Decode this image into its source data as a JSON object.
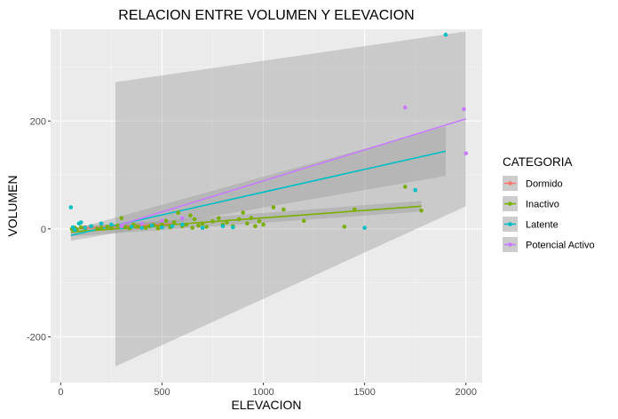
{
  "chart_data": {
    "type": "scatter",
    "title": "RELACION ENTRE VOLUMEN Y ELEVACION",
    "xlabel": "ELEVACION",
    "ylabel": "VOLUMEN",
    "xlim": [
      -50,
      2080
    ],
    "ylim": [
      -285,
      370
    ],
    "x_ticks": [
      0,
      500,
      1000,
      1500,
      2000
    ],
    "x_tick_labels": [
      "0",
      "500",
      "1000",
      "1500",
      "2000"
    ],
    "y_ticks": [
      -200,
      0,
      200
    ],
    "y_tick_labels": [
      "-200",
      "0",
      "200"
    ],
    "grid": true,
    "legend": {
      "title": "CATEGORIA",
      "position": "right"
    },
    "series": [
      {
        "name": "Dormido",
        "color": "#F8766D",
        "points": [
          [
            120,
            3
          ],
          [
            250,
            6
          ],
          [
            380,
            3
          ],
          [
            500,
            8
          ]
        ],
        "fit": [
          [
            100,
            1
          ],
          [
            550,
            9
          ]
        ],
        "band": [
          [
            100,
            -4,
            6
          ],
          [
            550,
            4,
            14
          ]
        ]
      },
      {
        "name": "Inactivo",
        "color": "#7CAE00",
        "points": [
          [
            55,
            0
          ],
          [
            70,
            2
          ],
          [
            80,
            -1
          ],
          [
            100,
            3
          ],
          [
            120,
            1
          ],
          [
            150,
            5
          ],
          [
            180,
            0
          ],
          [
            200,
            2
          ],
          [
            230,
            4
          ],
          [
            250,
            1
          ],
          [
            280,
            6
          ],
          [
            300,
            20
          ],
          [
            320,
            3
          ],
          [
            340,
            1
          ],
          [
            360,
            8
          ],
          [
            380,
            4
          ],
          [
            400,
            10
          ],
          [
            420,
            2
          ],
          [
            440,
            5
          ],
          [
            460,
            7
          ],
          [
            480,
            1
          ],
          [
            500,
            9
          ],
          [
            520,
            15
          ],
          [
            540,
            3
          ],
          [
            560,
            12
          ],
          [
            580,
            30
          ],
          [
            600,
            5
          ],
          [
            620,
            8
          ],
          [
            640,
            25
          ],
          [
            650,
            2
          ],
          [
            660,
            18
          ],
          [
            680,
            6
          ],
          [
            700,
            10
          ],
          [
            720,
            4
          ],
          [
            750,
            14
          ],
          [
            780,
            20
          ],
          [
            800,
            8
          ],
          [
            820,
            12
          ],
          [
            850,
            5
          ],
          [
            880,
            18
          ],
          [
            900,
            30
          ],
          [
            920,
            10
          ],
          [
            940,
            20
          ],
          [
            960,
            5
          ],
          [
            980,
            14
          ],
          [
            1000,
            8
          ],
          [
            1050,
            40
          ],
          [
            1100,
            36
          ],
          [
            1200,
            15
          ],
          [
            1400,
            4
          ],
          [
            1450,
            36
          ],
          [
            1700,
            78
          ],
          [
            1780,
            34
          ]
        ],
        "fit": [
          [
            50,
            -6
          ],
          [
            1780,
            42
          ]
        ],
        "band": [
          [
            50,
            -14,
            2
          ],
          [
            1780,
            32,
            52
          ]
        ]
      },
      {
        "name": "Latente",
        "color": "#00BFC4",
        "points": [
          [
            50,
            40
          ],
          [
            60,
            3
          ],
          [
            70,
            -2
          ],
          [
            90,
            10
          ],
          [
            100,
            12
          ],
          [
            120,
            2
          ],
          [
            150,
            5
          ],
          [
            200,
            10
          ],
          [
            250,
            8
          ],
          [
            300,
            3
          ],
          [
            350,
            4
          ],
          [
            400,
            2
          ],
          [
            450,
            6
          ],
          [
            500,
            3
          ],
          [
            550,
            5
          ],
          [
            600,
            8
          ],
          [
            700,
            2
          ],
          [
            800,
            5
          ],
          [
            850,
            3
          ],
          [
            1500,
            2
          ],
          [
            1750,
            72
          ],
          [
            1900,
            360
          ]
        ],
        "fit": [
          [
            50,
            -12
          ],
          [
            1900,
            144
          ]
        ],
        "band": [
          [
            50,
            -22,
            -2
          ],
          [
            1900,
            98,
            190
          ]
        ]
      },
      {
        "name": "Potencial Activo",
        "color": "#C77CFF",
        "points": [
          [
            300,
            5
          ],
          [
            400,
            10
          ],
          [
            500,
            15
          ],
          [
            600,
            20
          ],
          [
            1700,
            225
          ],
          [
            1990,
            222
          ],
          [
            2000,
            140
          ]
        ],
        "fit": [
          [
            270,
            5
          ],
          [
            2000,
            204
          ]
        ],
        "band": [
          [
            270,
            -255,
            272
          ],
          [
            2000,
            42,
            366
          ]
        ]
      }
    ]
  }
}
